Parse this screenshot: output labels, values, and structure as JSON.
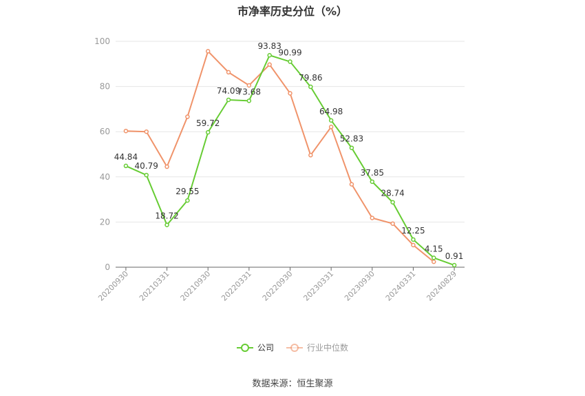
{
  "title": "市净率历史分位（%）",
  "source": "数据来源：恒生聚源",
  "chart_data": {
    "type": "line",
    "y_ticks": [
      0,
      20,
      40,
      60,
      80,
      100
    ],
    "ylim": [
      0,
      100
    ],
    "x_labels": [
      "20200930",
      "20210331",
      "20210930",
      "20220331",
      "20220930",
      "20230331",
      "20230930",
      "20240331",
      "20240829"
    ],
    "legend_position": "bottom",
    "grid": true,
    "series": [
      {
        "name": "公司",
        "color": "#66cc33",
        "values": [
          44.84,
          40.79,
          18.72,
          29.55,
          59.72,
          74.09,
          73.68,
          93.83,
          90.99,
          79.86,
          64.98,
          52.83,
          37.85,
          28.74,
          12.25,
          4.15,
          0.91
        ],
        "labels": [
          "44.84",
          "40.79",
          "18.72",
          "29.55",
          "59.72",
          "74.09",
          "73.68",
          "93.83",
          "90.99",
          "79.86",
          "64.98",
          "52.83",
          "37.85",
          "28.74",
          "12.25",
          "4.15",
          "0.91"
        ]
      },
      {
        "name": "行业中位数",
        "color": "#f0936a",
        "values": [
          60.3,
          60.0,
          44.5,
          66.6,
          95.6,
          86.3,
          80.5,
          89.7,
          77.0,
          49.6,
          62.1,
          36.7,
          21.8,
          19.3,
          9.8,
          2.4
        ]
      }
    ]
  }
}
